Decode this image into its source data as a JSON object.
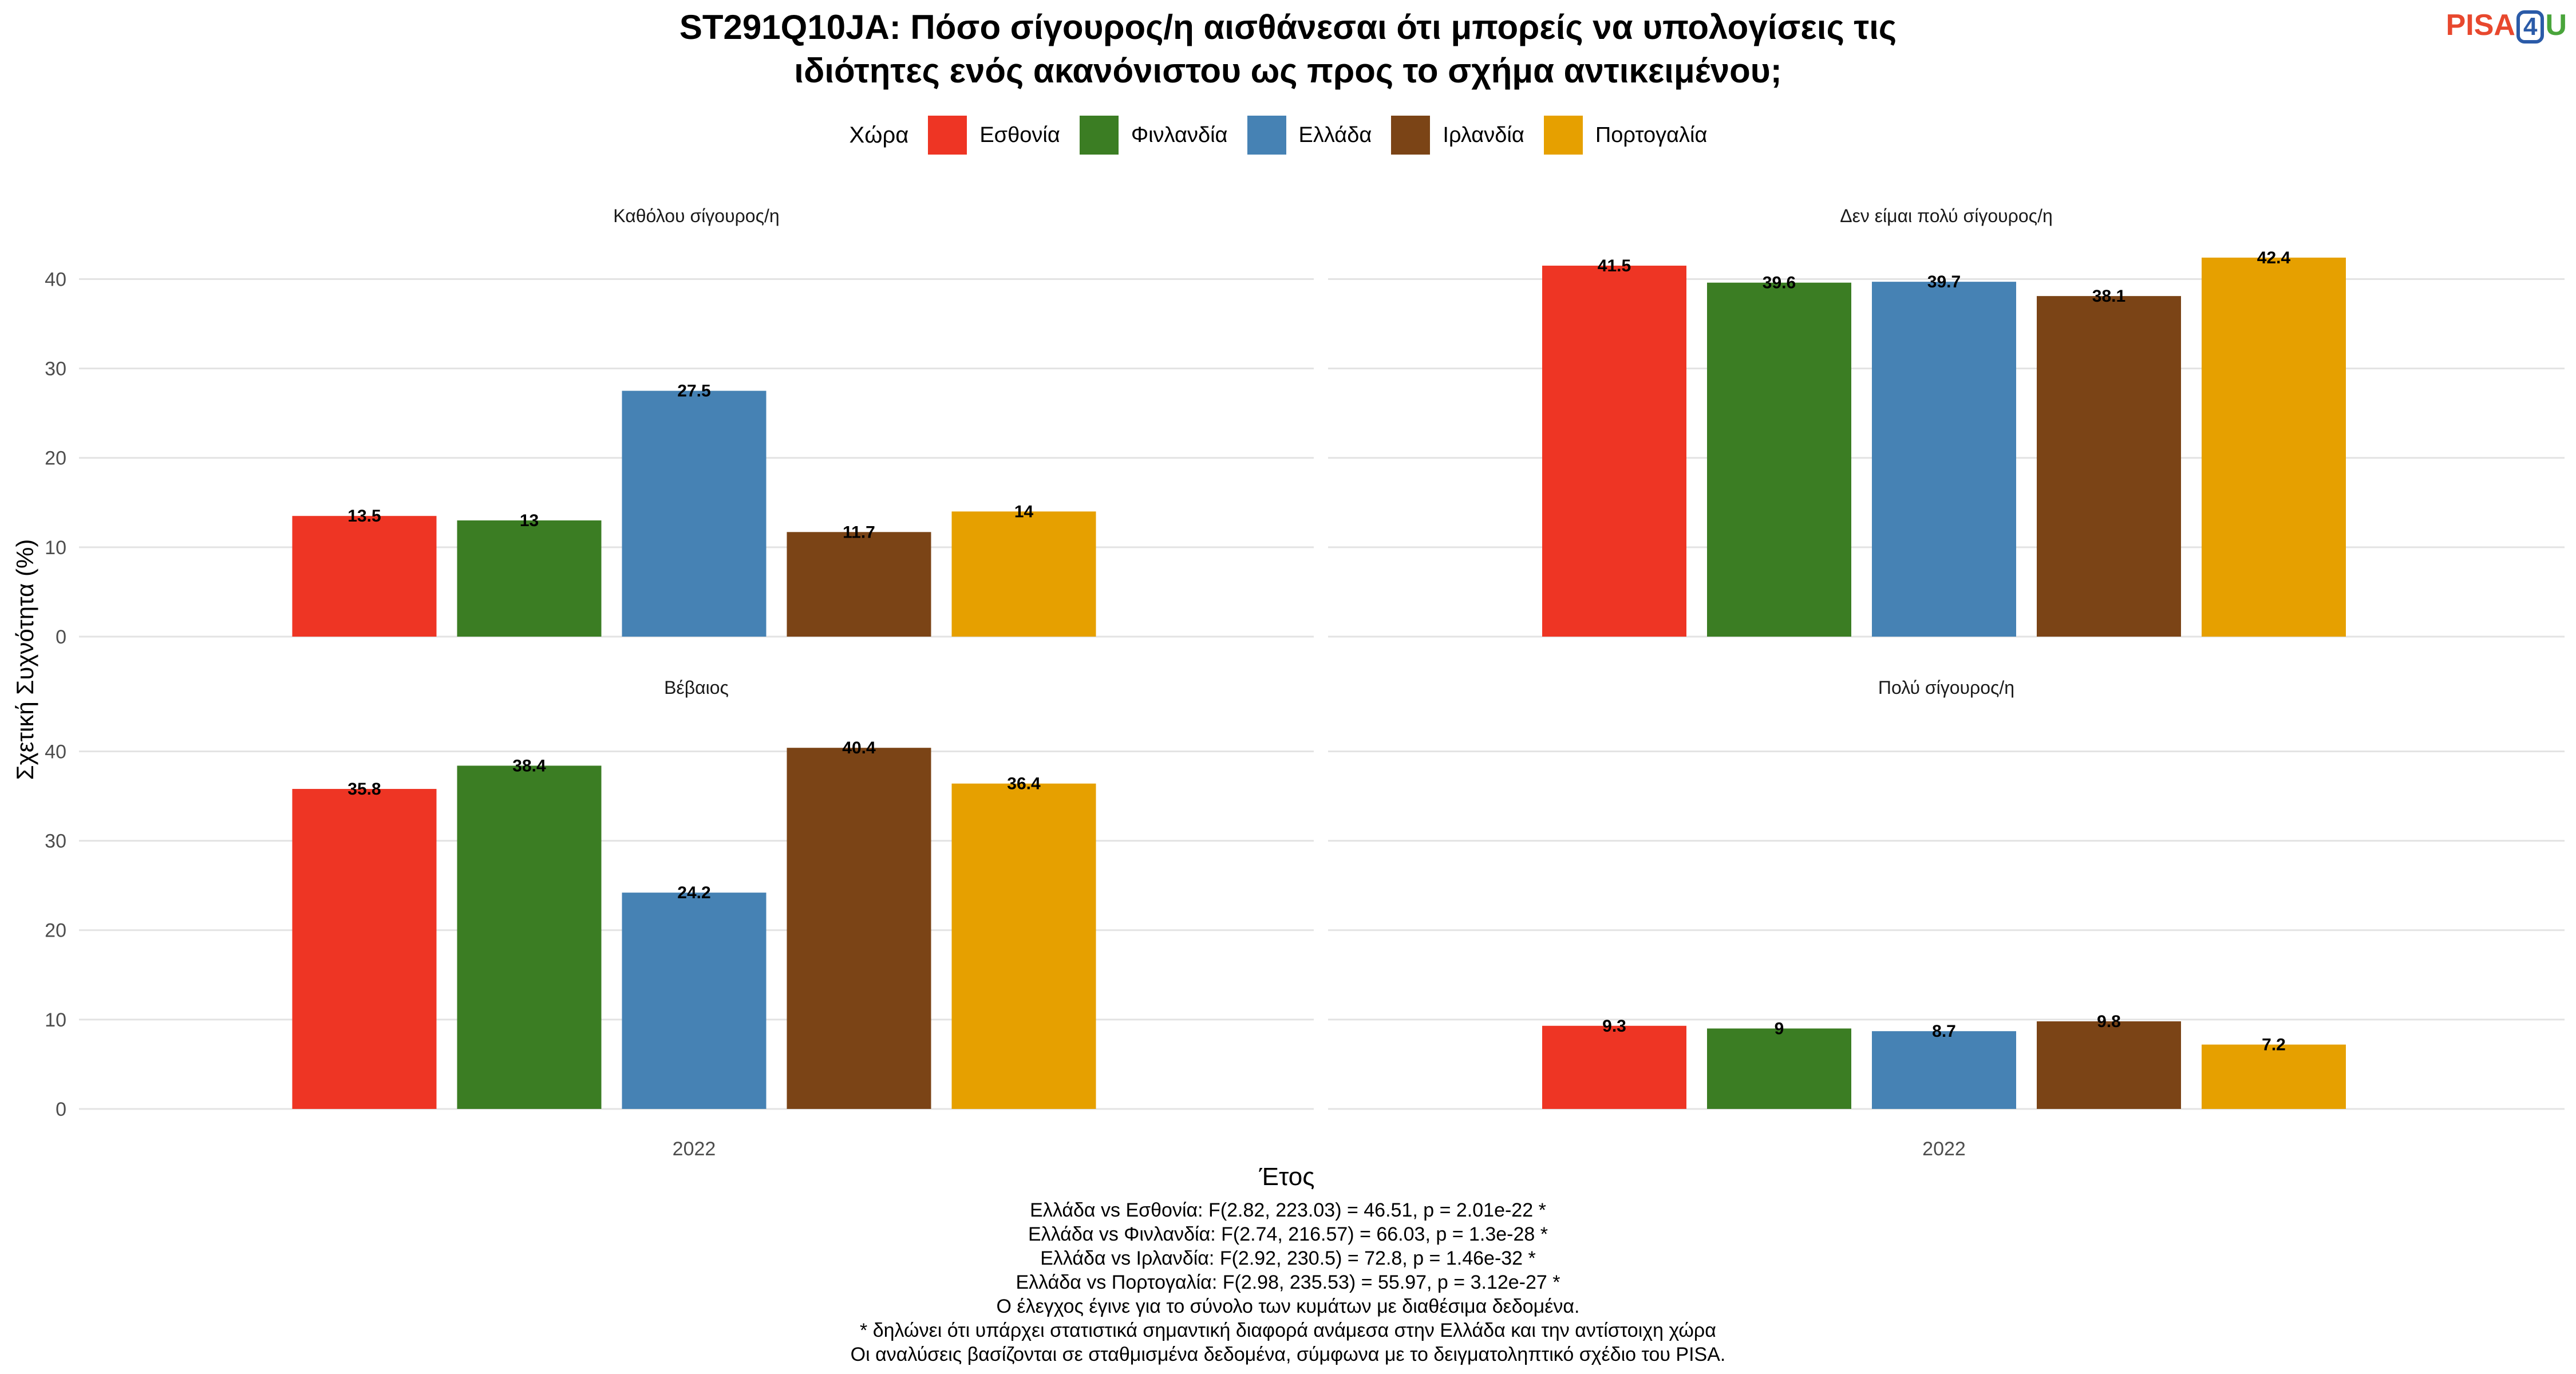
{
  "title": [
    "ST291Q10JA: Πόσο σίγουρος/η αισθάνεσαι ότι μπορείς να υπολογίσεις τις",
    "ιδιότητες ενός ακανόνιστου ως προς το σχήμα αντικειμένου;"
  ],
  "logo": {
    "prefix": "PISA",
    "digit": "4",
    "suffix": "U"
  },
  "chart_data": {
    "type": "bar",
    "xlabel": "Έτος",
    "ylabel": "Σχετική Συχνότητα (%)",
    "legend_title": "Χώρα",
    "legend_position": "top",
    "ylim": [
      0,
      44
    ],
    "yticks": [
      0,
      10,
      20,
      30,
      40
    ],
    "grid": true,
    "series": [
      {
        "name": "Εσθονία",
        "color": "#ee3524"
      },
      {
        "name": "Φινλανδία",
        "color": "#3b7d23"
      },
      {
        "name": "Ελλάδα",
        "color": "#4682b4"
      },
      {
        "name": "Ιρλανδία",
        "color": "#7b4416"
      },
      {
        "name": "Πορτογαλία",
        "color": "#e6a000"
      }
    ],
    "panels": [
      {
        "title": "Καθόλου σίγουρος/η",
        "category": "2022",
        "values": [
          13.5,
          13,
          27.5,
          11.7,
          14
        ],
        "labels": [
          "13.5",
          "13",
          "27.5",
          "11.7",
          "14"
        ]
      },
      {
        "title": "Δεν είμαι πολύ σίγουρος/η",
        "category": "2022",
        "values": [
          41.5,
          39.6,
          39.7,
          38.1,
          42.4
        ],
        "labels": [
          "41.5",
          "39.6",
          "39.7",
          "38.1",
          "42.4"
        ]
      },
      {
        "title": "Βέβαιος",
        "category": "2022",
        "values": [
          35.8,
          38.4,
          24.2,
          40.4,
          36.4
        ],
        "labels": [
          "35.8",
          "38.4",
          "24.2",
          "40.4",
          "36.4"
        ]
      },
      {
        "title": "Πολύ σίγουρος/η",
        "category": "2022",
        "values": [
          9.3,
          9,
          8.7,
          9.8,
          7.2
        ],
        "labels": [
          "9.3",
          "9",
          "8.7",
          "9.8",
          "7.2"
        ]
      }
    ]
  },
  "footnotes": [
    "Ελλάδα vs Εσθονία: F(2.82, 223.03) = 46.51, p = 2.01e-22 *",
    "Ελλάδα vs Φινλανδία: F(2.74, 216.57) = 66.03, p = 1.3e-28 *",
    "Ελλάδα vs Ιρλανδία: F(2.92, 230.5) = 72.8, p = 1.46e-32 *",
    "Ελλάδα vs Πορτογαλία: F(2.98, 235.53) = 55.97, p = 3.12e-27 *",
    "Ο έλεγχος έγινε για το σύνολο των κυμάτων με διαθέσιμα δεδομένα.",
    "* δηλώνει ότι υπάρχει στατιστικά σημαντική διαφορά ανάμεσα στην Ελλάδα και την αντίστοιχη χώρα",
    "Οι αναλύσεις βασίζονται σε σταθμισμένα δεδομένα, σύμφωνα με το δειγματοληπτικό σχέδιο του PISA."
  ]
}
